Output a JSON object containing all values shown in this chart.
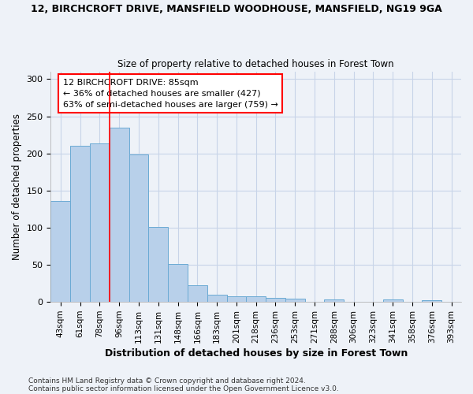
{
  "title_line1": "12, BIRCHCROFT DRIVE, MANSFIELD WOODHOUSE, MANSFIELD, NG19 9GA",
  "title_line2": "Size of property relative to detached houses in Forest Town",
  "xlabel": "Distribution of detached houses by size in Forest Town",
  "ylabel": "Number of detached properties",
  "categories": [
    "43sqm",
    "61sqm",
    "78sqm",
    "96sqm",
    "113sqm",
    "131sqm",
    "148sqm",
    "166sqm",
    "183sqm",
    "201sqm",
    "218sqm",
    "236sqm",
    "253sqm",
    "271sqm",
    "288sqm",
    "306sqm",
    "323sqm",
    "341sqm",
    "358sqm",
    "376sqm",
    "393sqm"
  ],
  "values": [
    136,
    210,
    213,
    235,
    199,
    101,
    51,
    23,
    10,
    8,
    8,
    5,
    4,
    0,
    3,
    0,
    0,
    3,
    0,
    2,
    0
  ],
  "bar_color": "#b8d0ea",
  "bar_edge_color": "#6aaad4",
  "red_line_x": 2.5,
  "annotation_text": "12 BIRCHCROFT DRIVE: 85sqm\n← 36% of detached houses are smaller (427)\n63% of semi-detached houses are larger (759) →",
  "annotation_box_color": "white",
  "annotation_box_edge_color": "red",
  "footnote_line1": "Contains HM Land Registry data © Crown copyright and database right 2024.",
  "footnote_line2": "Contains public sector information licensed under the Open Government Licence v3.0.",
  "ylim": [
    0,
    310
  ],
  "background_color": "#eef2f8",
  "grid_color": "#c8d4e8"
}
